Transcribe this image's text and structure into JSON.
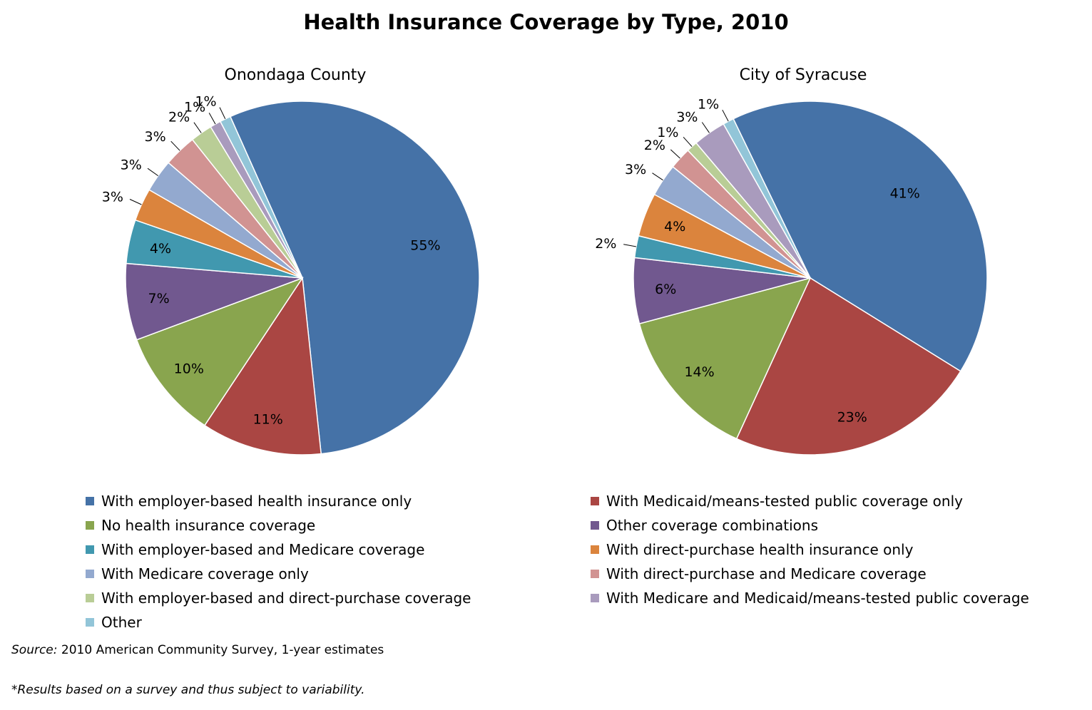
{
  "title": "Health Insurance Coverage by Type, 2010",
  "source_label": "Source:",
  "source_text": " 2010 American Community Survey, 1-year estimates",
  "footnote": "*Results based on a survey and thus subject to variability.",
  "colors": [
    "#4572A7",
    "#AA4643",
    "#89A54E",
    "#71588F",
    "#4198AF",
    "#DB843D",
    "#93A9CF",
    "#D19392",
    "#B9CD96",
    "#A99BBD",
    "#92C5D8"
  ],
  "categories": [
    "With employer-based health insurance only",
    "With Medicaid/means-tested public coverage only",
    "No health insurance coverage",
    "Other coverage combinations",
    "With employer-based and Medicare coverage",
    "With direct-purchase health insurance only",
    "With Medicare coverage only",
    "With direct-purchase and Medicare coverage",
    "With employer-based and direct-purchase coverage",
    "With Medicare and Medicaid/means-tested public coverage",
    "Other"
  ],
  "chart_data": [
    {
      "type": "pie",
      "title": "Onondaga County",
      "slice_order": [
        0,
        1,
        2,
        3,
        4,
        5,
        6,
        7,
        8,
        9,
        10
      ],
      "values": [
        55,
        11,
        10,
        7,
        4,
        3,
        3,
        3,
        2,
        1,
        1
      ],
      "labels": [
        "55%",
        "11%",
        "10%",
        "7%",
        "4%",
        "3%",
        "3%",
        "3%",
        "2%",
        "1%",
        "1%"
      ],
      "legend": "bottom"
    },
    {
      "type": "pie",
      "title": "City of Syracuse",
      "slice_order": [
        0,
        1,
        2,
        3,
        4,
        5,
        6,
        7,
        8,
        9,
        10
      ],
      "values": [
        41,
        23,
        14,
        6,
        2,
        4,
        3,
        2,
        1,
        3,
        1
      ],
      "labels": [
        "41%",
        "23%",
        "14%",
        "6%",
        "2%",
        "4%",
        "3%",
        "2%",
        "1%",
        "3%",
        "1%"
      ],
      "legend": "bottom"
    }
  ]
}
